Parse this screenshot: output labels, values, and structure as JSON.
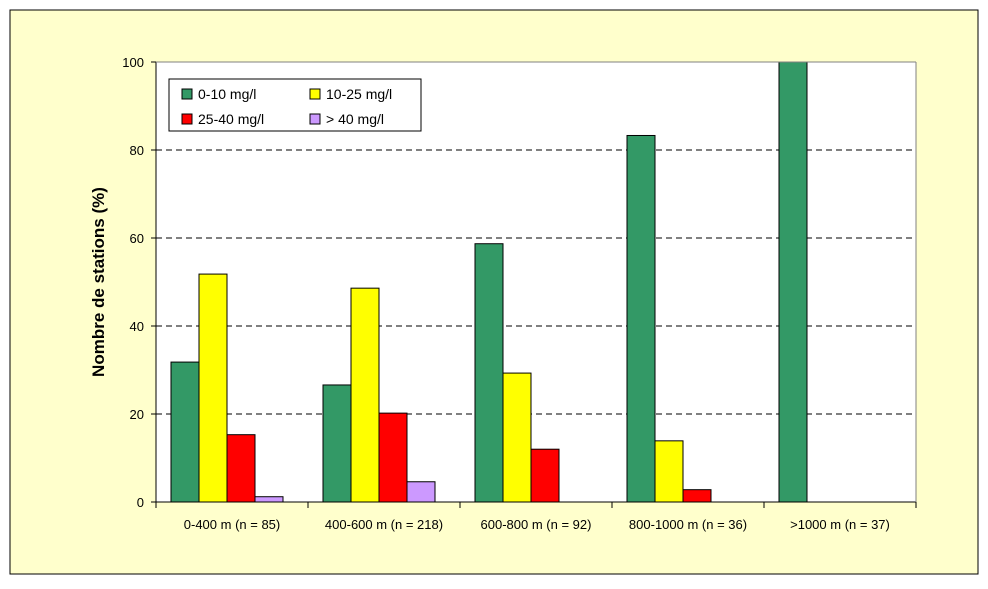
{
  "chart_data": {
    "type": "bar",
    "title": "",
    "xlabel": "",
    "ylabel": "Nombre de stations (%)",
    "ylim": [
      0,
      100
    ],
    "yticks": [
      0,
      20,
      40,
      60,
      80,
      100
    ],
    "grid": "horizontal dashed",
    "legend_position": "top-left",
    "categories": [
      "0-400 m (n = 85)",
      "400-600 m (n = 218)",
      "600-800 m (n = 92)",
      "800-1000 m (n = 36)",
      ">1000 m (n = 37)"
    ],
    "series": [
      {
        "name": "0-10 mg/l",
        "color": "#339966",
        "values": [
          31.8,
          26.6,
          58.7,
          83.3,
          100
        ]
      },
      {
        "name": "10-25 mg/l",
        "color": "#ffff00",
        "values": [
          51.8,
          48.6,
          29.3,
          13.9,
          0
        ]
      },
      {
        "name": "25-40 mg/l",
        "color": "#ff0000",
        "values": [
          15.3,
          20.2,
          12.0,
          2.8,
          0
        ]
      },
      {
        "name": "> 40 mg/l",
        "color": "#cc99ff",
        "values": [
          1.2,
          4.6,
          0,
          0,
          0
        ]
      }
    ],
    "colors": {
      "page_background": "#ffffcc",
      "plot_background": "#ffffff"
    }
  }
}
